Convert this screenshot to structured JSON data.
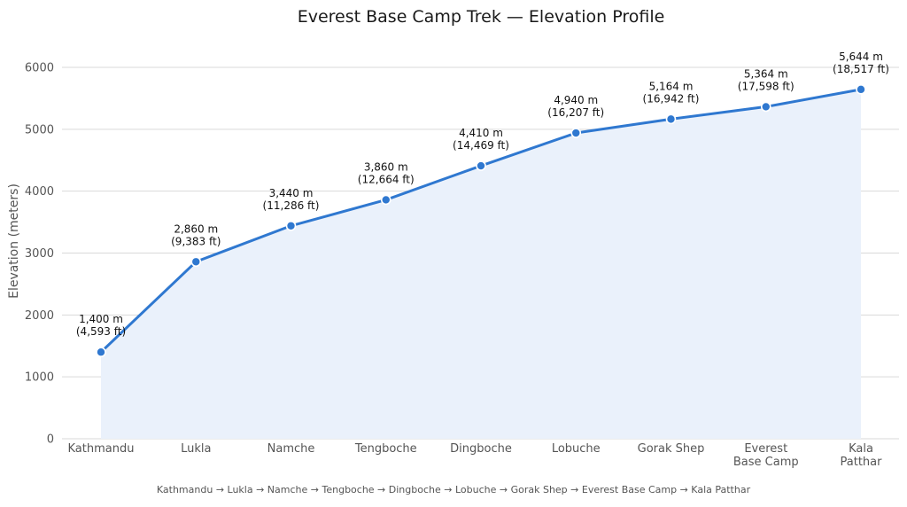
{
  "chart_data": {
    "type": "line",
    "title": "Everest Base Camp Trek — Elevation Profile",
    "xlabel": "",
    "ylabel": "Elevation (meters)",
    "ylim": [
      0,
      6200
    ],
    "y_ticks": [
      0,
      1000,
      2000,
      3000,
      4000,
      5000,
      6000
    ],
    "grid": true,
    "area_fill": true,
    "colors": {
      "line": "#2f78d0",
      "fill": "#eaf1fb",
      "marker": "#2f78d0",
      "grid": "#d9d9d9"
    },
    "categories": [
      [
        "Kathmandu"
      ],
      [
        "Lukla"
      ],
      [
        "Namche"
      ],
      [
        "Tengboche"
      ],
      [
        "Dingboche"
      ],
      [
        "Lobuche"
      ],
      [
        "Gorak Shep"
      ],
      [
        "Everest",
        "Base Camp"
      ],
      [
        "Kala",
        "Patthar"
      ]
    ],
    "series": [
      {
        "values": [
          1400,
          2860,
          3440,
          3860,
          4410,
          4940,
          5164,
          5364,
          5644
        ]
      }
    ],
    "data_labels": [
      [
        "1,400 m",
        "(4,593 ft)"
      ],
      [
        "2,860 m",
        "(9,383 ft)"
      ],
      [
        "3,440 m",
        "(11,286 ft)"
      ],
      [
        "3,860 m",
        "(12,664 ft)"
      ],
      [
        "4,410 m",
        "(14,469 ft)"
      ],
      [
        "4,940 m",
        "(16,207 ft)"
      ],
      [
        "5,164 m",
        "(16,942 ft)"
      ],
      [
        "5,364 m",
        "(17,598 ft)"
      ],
      [
        "5,644 m",
        "(18,517 ft)"
      ]
    ],
    "footer": "Kathmandu → Lukla → Namche → Tengboche → Dingboche → Lobuche → Gorak Shep → Everest Base Camp → Kala Patthar"
  }
}
